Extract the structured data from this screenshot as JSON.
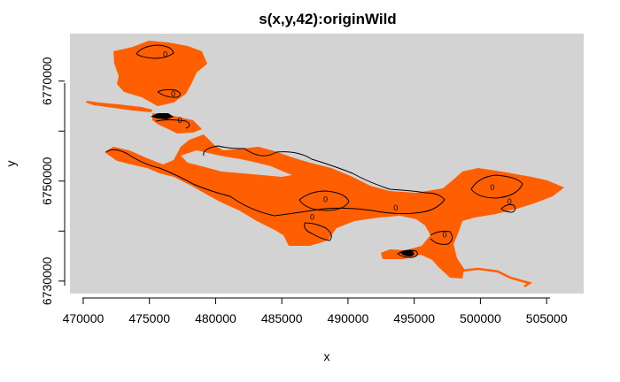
{
  "chart_data": {
    "type": "heatmap",
    "title": "s(x,y,42):originWild",
    "xlabel": "x",
    "ylabel": "y",
    "xlim": [
      469000,
      507800
    ],
    "ylim": [
      6727500,
      6779500
    ],
    "x_ticks": [
      470000,
      475000,
      480000,
      485000,
      490000,
      495000,
      500000,
      505000
    ],
    "y_ticks": [
      6730000,
      6750000,
      6770000
    ],
    "y_minor_ticks": [
      6740000,
      6760000
    ],
    "x_tick_labels": [
      "470000",
      "475000",
      "480000",
      "485000",
      "490000",
      "495000",
      "500000",
      "505000"
    ],
    "y_tick_labels": [
      "6730000",
      "6750000",
      "6770000"
    ],
    "colors": {
      "background": "#d3d3d3",
      "surface": "#ff5f00",
      "contour": "#000000",
      "axis": "#000000"
    },
    "contour_level": "0",
    "contour_label_positions": [
      {
        "x": 476200,
        "y": 6775300
      },
      {
        "x": 476800,
        "y": 6767500
      },
      {
        "x": 477300,
        "y": 6762200
      },
      {
        "x": 488300,
        "y": 6746300
      },
      {
        "x": 493600,
        "y": 6744700
      },
      {
        "x": 487300,
        "y": 6742800
      },
      {
        "x": 497300,
        "y": 6739300
      },
      {
        "x": 500900,
        "y": 6748700
      },
      {
        "x": 502200,
        "y": 6745900
      }
    ]
  }
}
